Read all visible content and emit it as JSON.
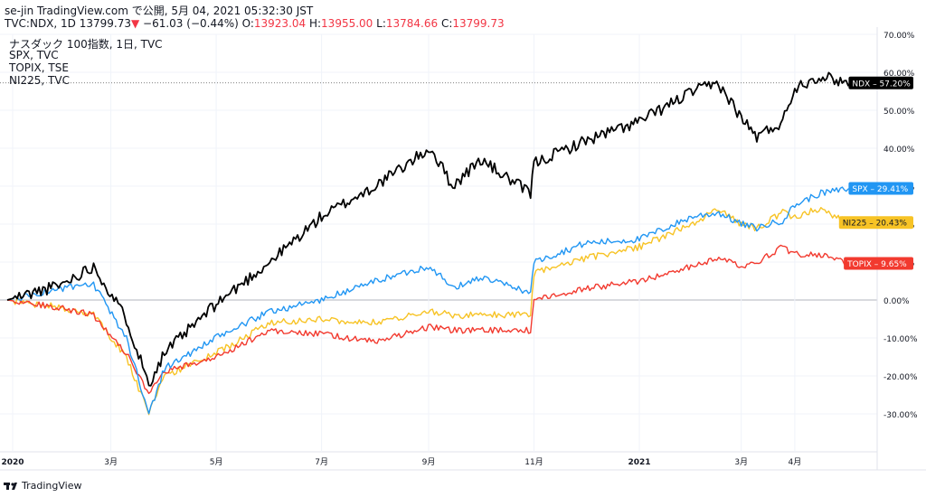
{
  "header": {
    "line1": "se-jin TradingView.com で公開, 5月 04, 2021 05:32:30 JST",
    "symbol": "TVC:NDX, 1D 13799.73",
    "arrow": "▼",
    "change": " −61.03 (−0.44%) ",
    "o_label": "O:",
    "o_value": "13923.04",
    "h_label": " H:",
    "h_value": "13955.00",
    "l_label": " L:",
    "l_value": "13784.66",
    "c_label": " C:",
    "c_value": "13799.73"
  },
  "legend": [
    "ナスダック 100指数, 1日, TVC",
    "SPX, TVC",
    "TOPIX, TSE",
    "NI225, TVC"
  ],
  "footer": {
    "brand": "TradingView",
    "icon": "tradingview-logo-icon"
  },
  "colors": {
    "NDX": "#000000",
    "SPX": "#2196f3",
    "NI225": "#f7c325",
    "TOPIX": "#f23a2f",
    "down": "#f23645"
  },
  "chart_data": {
    "type": "line",
    "title": "",
    "ylabel": "%",
    "ylim": [
      -40,
      70
    ],
    "y_ticks": [
      "70.00%",
      "60.00%",
      "50.00%",
      "40.00%",
      "30.00%",
      "20.00%",
      "10.00%",
      "0.00%",
      "-10.00%",
      "-20.00%",
      "-30.00%"
    ],
    "x_ticks": [
      "2020",
      "3月",
      "5月",
      "7月",
      "9月",
      "11月",
      "2021",
      "3月",
      "4月"
    ],
    "x": [
      "2020-01",
      "2020-02",
      "2020-02-20",
      "2020-03-10",
      "2020-03-23",
      "2020-04",
      "2020-05",
      "2020-06",
      "2020-07",
      "2020-08",
      "2020-09-02",
      "2020-09-15",
      "2020-10",
      "2020-10-30",
      "2020-11",
      "2020-12",
      "2021-01",
      "2021-02",
      "2021-02-16",
      "2021-03",
      "2021-03-10",
      "2021-03-25",
      "2021-04",
      "2021-04-15",
      "2021-05-03"
    ],
    "series": [
      {
        "name": "NDX",
        "end_label": "NDX",
        "end_value": "57.20%",
        "values": [
          0,
          4,
          9,
          -5,
          -22,
          -14,
          -1,
          10,
          22,
          30,
          40,
          30,
          37,
          28,
          36,
          42,
          47,
          55,
          57,
          48,
          43,
          47,
          56,
          59,
          57.2
        ]
      },
      {
        "name": "SPX",
        "end_label": "SPX",
        "end_value": "29.41%",
        "values": [
          0,
          3,
          4,
          -10,
          -30,
          -18,
          -10,
          -3,
          0,
          5,
          9,
          3,
          6,
          2,
          10,
          15,
          16,
          22,
          23,
          20,
          19,
          21,
          25,
          28,
          29.41
        ]
      },
      {
        "name": "NI225",
        "end_label": "NI225",
        "end_value": "20.43%",
        "values": [
          0,
          -2,
          -4,
          -15,
          -30,
          -20,
          -14,
          -6,
          -5,
          -6,
          -3,
          -4,
          -4,
          -4,
          7,
          11,
          14,
          20,
          24,
          20,
          19,
          23,
          22,
          24,
          20.43
        ]
      },
      {
        "name": "TOPIX",
        "end_label": "TOPIX",
        "end_value": "9.65%",
        "values": [
          0,
          -2,
          -4,
          -14,
          -25,
          -19,
          -15,
          -8,
          -9,
          -11,
          -7,
          -8,
          -8,
          -8,
          0,
          3,
          5,
          9,
          11,
          9,
          10,
          14,
          12,
          12,
          9.65
        ]
      }
    ]
  }
}
